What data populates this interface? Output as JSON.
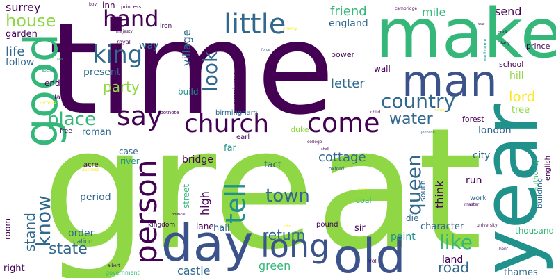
{
  "palette": {
    "background": "#ffffff",
    "dark_purple": "#440154",
    "indigo": "#3b528b",
    "steel_blue": "#31688e",
    "teal": "#21918c",
    "sea_green": "#35b779",
    "lime": "#8fd744",
    "yellow": "#fde725"
  },
  "words": [
    "time",
    "great",
    "make",
    "year",
    "man",
    "good",
    "day",
    "old",
    "come",
    "church",
    "long",
    "king",
    "hand",
    "little",
    "say",
    "country",
    "person",
    "know",
    "tell",
    "queen",
    "look",
    "like",
    "town",
    "place",
    "house",
    "water",
    "party",
    "lord",
    "stand",
    "state",
    "return",
    "road",
    "letter",
    "friend",
    "send",
    "mile",
    "england",
    "village",
    "life",
    "surrey",
    "garden",
    "follow",
    "end",
    "law",
    "inn",
    "way",
    "present",
    "build",
    "century",
    "hold",
    "bridge",
    "cottage",
    "think",
    "fact",
    "high",
    "case",
    "river",
    "roman",
    "far",
    "street",
    "run",
    "london",
    "city",
    "south",
    "castle",
    "green",
    "hall",
    "room",
    "right",
    "order",
    "period",
    "die",
    "character",
    "point",
    "land",
    "thames",
    "thousand",
    "english",
    "building",
    "authority",
    "school",
    "hill",
    "tree",
    "prince",
    "wall",
    "power",
    "forest",
    "sir",
    "lane",
    "pound",
    "coal",
    "duke",
    "earl",
    "birmingham",
    "kingdom",
    "nation",
    "acre",
    "iron",
    "royal",
    "majesty",
    "boy",
    "princess",
    "cambridge",
    "enemy",
    "book",
    "lady",
    "war",
    "melbourne",
    "society",
    "note",
    "victoria",
    "scholar",
    "footnote",
    "child",
    "history",
    "college",
    "johnson",
    "free",
    "duchess",
    "shall",
    "oxford",
    "visit",
    "master",
    "university",
    "john",
    "political",
    "son",
    "albert",
    "government",
    "vol",
    "kent",
    "work",
    "force"
  ]
}
